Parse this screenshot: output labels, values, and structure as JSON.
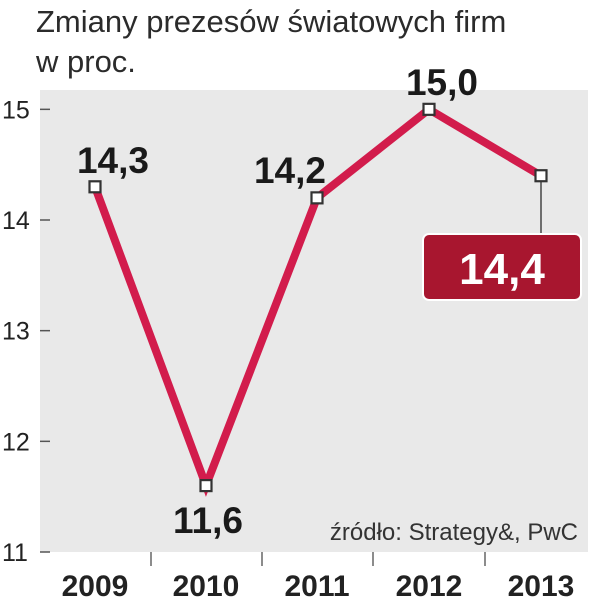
{
  "title_line1": "Zmiany prezesów światowych firm",
  "title_line2": "w proc.",
  "source": "źródło: Strategy&, PwC",
  "colors": {
    "line": "#d21c4c",
    "panel": "#e9e9e9",
    "highlight_box": "#a8162f",
    "marker_fill": "#ffffff",
    "marker_stroke": "#333333"
  },
  "chart_data": {
    "type": "line",
    "categories": [
      "2009",
      "2010",
      "2011",
      "2012",
      "2013"
    ],
    "values": [
      14.3,
      11.6,
      14.2,
      15.0,
      14.4
    ],
    "value_labels": [
      "14,3",
      "11,6",
      "14,2",
      "15,0",
      "14,4"
    ],
    "highlight_index": 4,
    "yticks": [
      11,
      12,
      13,
      14,
      15
    ],
    "ylim": [
      11,
      15.7
    ],
    "grid": false
  }
}
